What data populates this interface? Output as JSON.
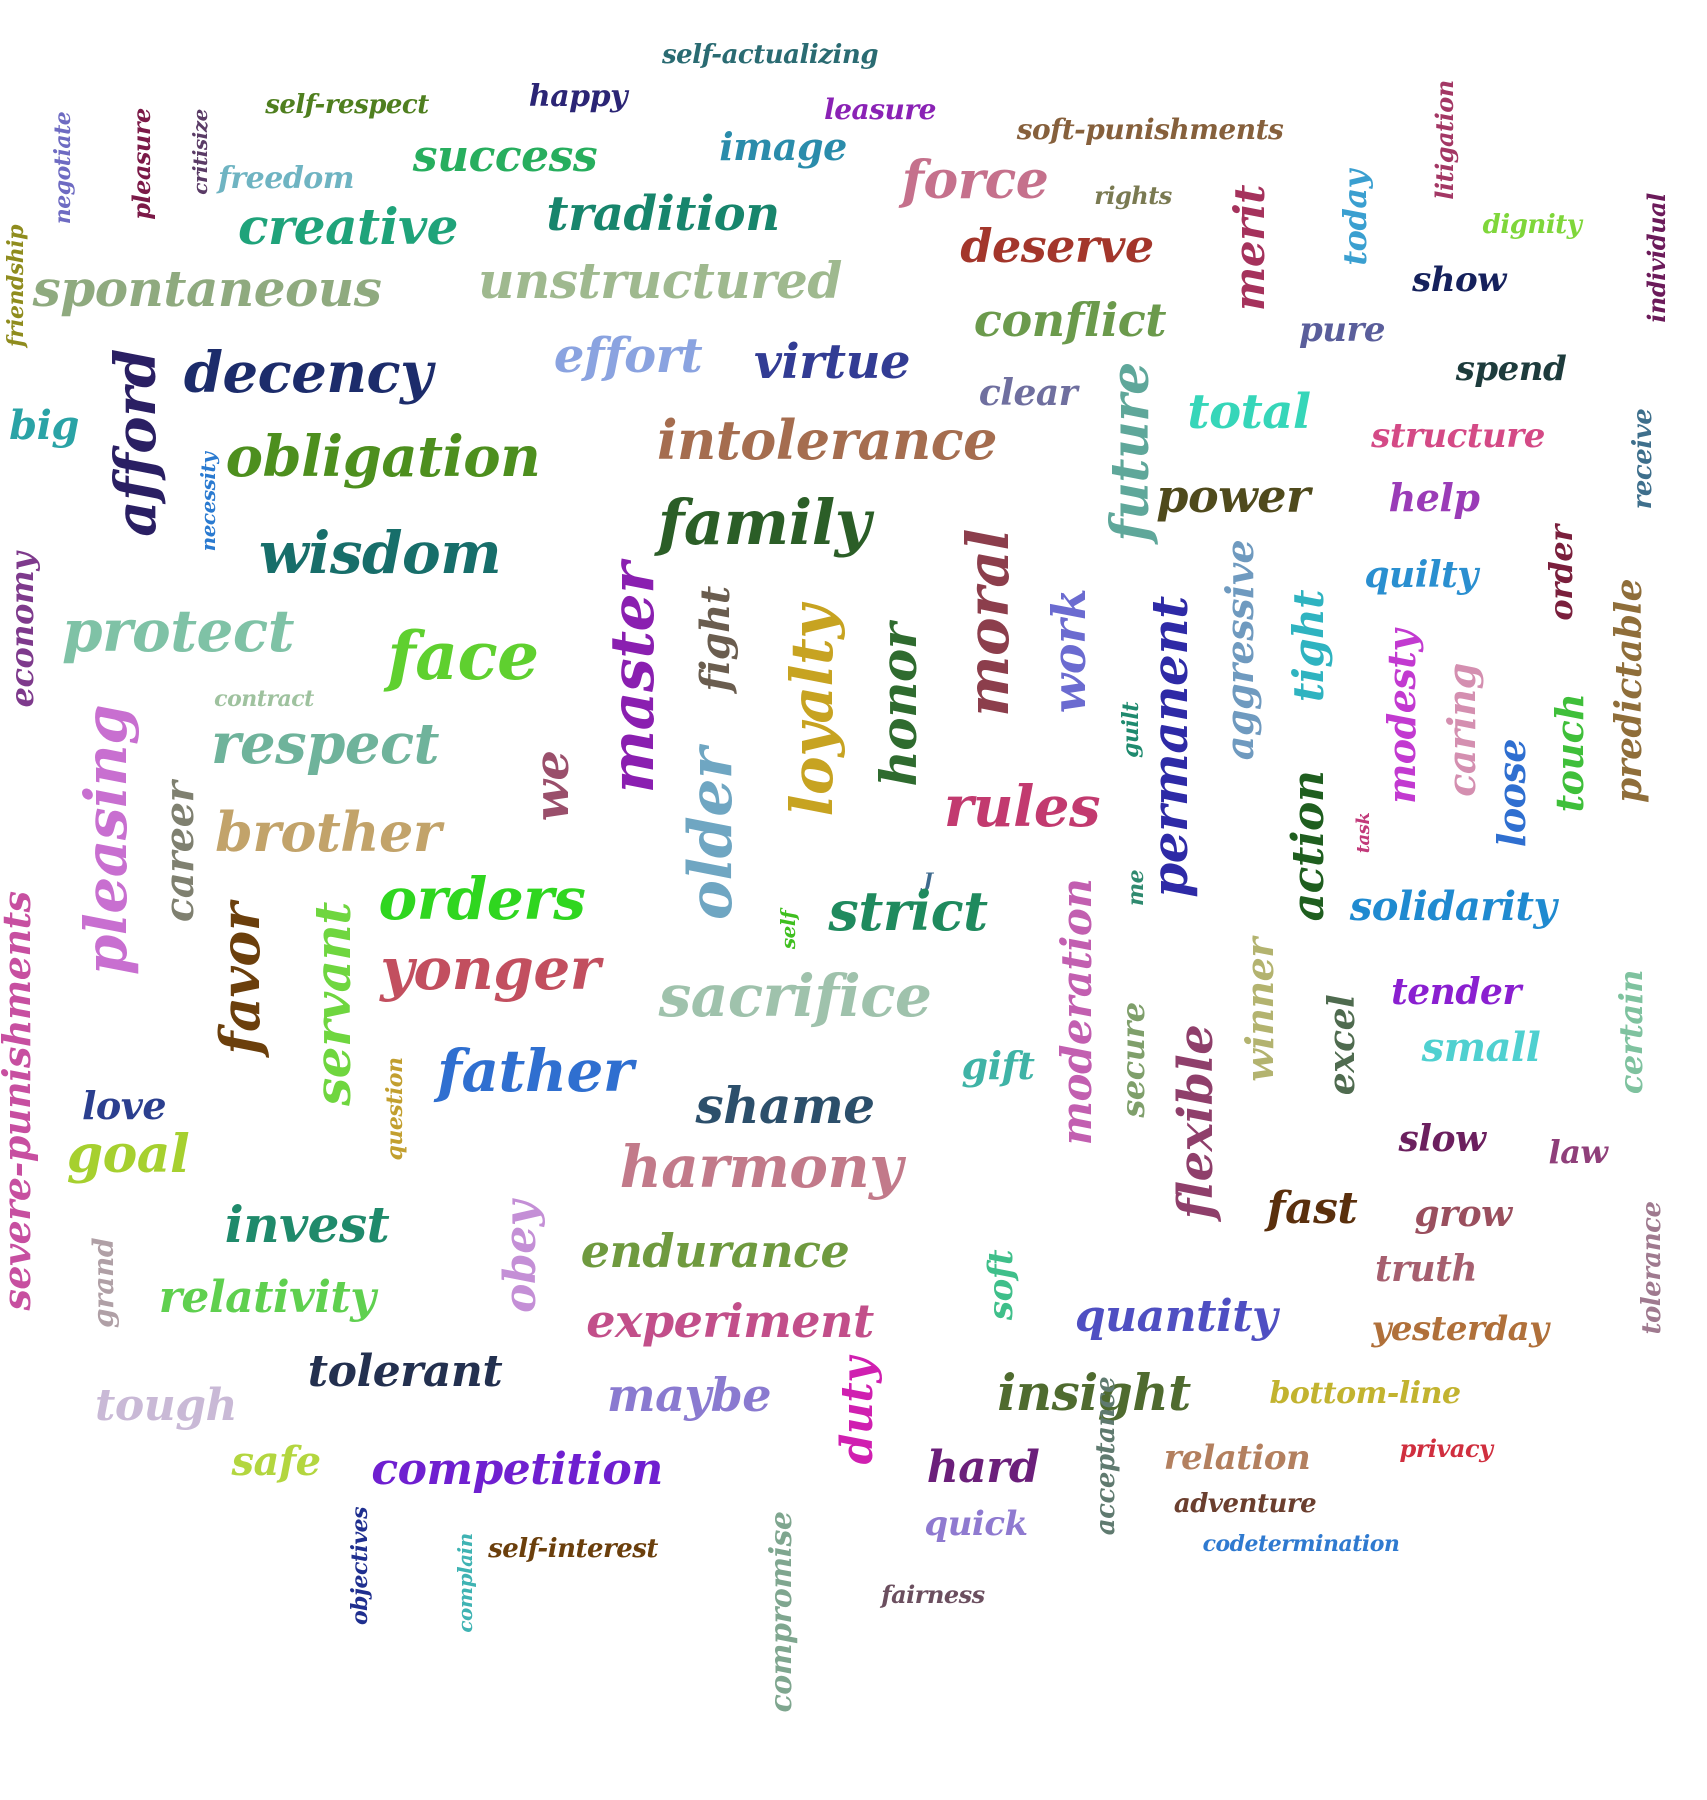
{
  "words": [
    {
      "text": "self-actualizing",
      "color": "#2a6b72"
    },
    {
      "text": "self-respect",
      "color": "#4f7f1f"
    },
    {
      "text": "happy",
      "color": "#2b2575"
    },
    {
      "text": "leasure",
      "color": "#8a22b5"
    },
    {
      "text": "soft-punishments",
      "color": "#86603c"
    },
    {
      "text": "litigation",
      "color": "#a33764"
    },
    {
      "text": "negotiate",
      "color": "#6e6bc2"
    },
    {
      "text": "pleasure",
      "color": "#7b1947"
    },
    {
      "text": "critisize",
      "color": "#5a3b66"
    },
    {
      "text": "success",
      "color": "#27ae5e"
    },
    {
      "text": "image",
      "color": "#2a8cab"
    },
    {
      "text": "freedom",
      "color": "#6fb4c2"
    },
    {
      "text": "force",
      "color": "#c5718c"
    },
    {
      "text": "rights",
      "color": "#7a7a52"
    },
    {
      "text": "friendship",
      "color": "#8f8c1e"
    },
    {
      "text": "creative",
      "color": "#1fa37a"
    },
    {
      "text": "tradition",
      "color": "#17856c"
    },
    {
      "text": "deserve",
      "color": "#a3362b"
    },
    {
      "text": "merit",
      "color": "#a5325c"
    },
    {
      "text": "today",
      "color": "#3a9fd0"
    },
    {
      "text": "dignity",
      "color": "#7fd63a"
    },
    {
      "text": "individual",
      "color": "#6b1a5a"
    },
    {
      "text": "spontaneous",
      "color": "#8faa7f"
    },
    {
      "text": "unstructured",
      "color": "#9fb98f"
    },
    {
      "text": "conflict",
      "color": "#6b9a4c"
    },
    {
      "text": "show",
      "color": "#15215c"
    },
    {
      "text": "pure",
      "color": "#5a5e9b"
    },
    {
      "text": "effort",
      "color": "#8aa3e0"
    },
    {
      "text": "virtue",
      "color": "#323c94"
    },
    {
      "text": "decency",
      "color": "#1c2c6b"
    },
    {
      "text": "afford",
      "color": "#2a1f63"
    },
    {
      "text": "spend",
      "color": "#1d3b3c"
    },
    {
      "text": "big",
      "color": "#2aa3a6"
    },
    {
      "text": "clear",
      "color": "#6f6f9f"
    },
    {
      "text": "total",
      "color": "#36d6b9"
    },
    {
      "text": "future",
      "color": "#5fa79a"
    },
    {
      "text": "structure",
      "color": "#d44a86"
    },
    {
      "text": "receive",
      "color": "#3e6f8c"
    },
    {
      "text": "obligation",
      "color": "#4d8f1e"
    },
    {
      "text": "necessity",
      "color": "#2a7ad0"
    },
    {
      "text": "intolerance",
      "color": "#a56d4f"
    },
    {
      "text": "power",
      "color": "#4f4a1c"
    },
    {
      "text": "help",
      "color": "#9a3cb7"
    },
    {
      "text": "family",
      "color": "#2b5e27"
    },
    {
      "text": "wisdom",
      "color": "#176e6a"
    },
    {
      "text": "economy",
      "color": "#7e3a8c"
    },
    {
      "text": "order",
      "color": "#7a1f3c"
    },
    {
      "text": "quilty",
      "color": "#2a8fd0"
    },
    {
      "text": "moral",
      "color": "#8c3e4c"
    },
    {
      "text": "aggressive",
      "color": "#6f9abf"
    },
    {
      "text": "protect",
      "color": "#7fc2a6"
    },
    {
      "text": "fight",
      "color": "#6a5d4f"
    },
    {
      "text": "master",
      "color": "#8a1fb0"
    },
    {
      "text": "work",
      "color": "#6b6bd0"
    },
    {
      "text": "tight",
      "color": "#2fb3c0"
    },
    {
      "text": "face",
      "color": "#5fd02f"
    },
    {
      "text": "honor",
      "color": "#2f6b2f"
    },
    {
      "text": "loyalty",
      "color": "#c7a321"
    },
    {
      "text": "permanent",
      "color": "#2e2aa6"
    },
    {
      "text": "predictable",
      "color": "#8f6e3a"
    },
    {
      "text": "contract",
      "color": "#9fc29f"
    },
    {
      "text": "modesty",
      "color": "#c23ad0"
    },
    {
      "text": "caring",
      "color": "#d48fb0"
    },
    {
      "text": "touch",
      "color": "#3fbf3a"
    },
    {
      "text": "guilt",
      "color": "#1f8a6e"
    },
    {
      "text": "respect",
      "color": "#6fb39b"
    },
    {
      "text": "pleasing",
      "color": "#c86fd0"
    },
    {
      "text": "we",
      "color": "#9a4f6b"
    },
    {
      "text": "loose",
      "color": "#2f6fd0"
    },
    {
      "text": "career",
      "color": "#7f8070"
    },
    {
      "text": "older",
      "color": "#6fa6c2"
    },
    {
      "text": "rules",
      "color": "#c23a6f"
    },
    {
      "text": "action",
      "color": "#1f5e1f"
    },
    {
      "text": "brother",
      "color": "#c2a36a"
    },
    {
      "text": "task",
      "color": "#c23a7a"
    },
    {
      "text": "severe-punishments",
      "color": "#c74fa0"
    },
    {
      "text": "orders",
      "color": "#2fd61f"
    },
    {
      "text": "me",
      "color": "#2f8a6f"
    },
    {
      "text": "J",
      "color": "#3f6b8f"
    },
    {
      "text": "strict",
      "color": "#1f8a5e"
    },
    {
      "text": "solidarity",
      "color": "#1f8ad0"
    },
    {
      "text": "favor",
      "color": "#6b3f0c"
    },
    {
      "text": "servant",
      "color": "#6fd63f"
    },
    {
      "text": "self",
      "color": "#3fbf1f"
    },
    {
      "text": "moderation",
      "color": "#c25fb0"
    },
    {
      "text": "winner",
      "color": "#b3b36f"
    },
    {
      "text": "yonger",
      "color": "#c24f5f"
    },
    {
      "text": "sacrifice",
      "color": "#9fc2ac"
    },
    {
      "text": "tender",
      "color": "#8a1fd0"
    },
    {
      "text": "certain",
      "color": "#7fc29f"
    },
    {
      "text": "excel",
      "color": "#4f6b4f"
    },
    {
      "text": "small",
      "color": "#4fd0d0"
    },
    {
      "text": "secure",
      "color": "#7f9f6b"
    },
    {
      "text": "gift",
      "color": "#3fb3a6"
    },
    {
      "text": "father",
      "color": "#2f6fd0"
    },
    {
      "text": "flexible",
      "color": "#8f3f6b"
    },
    {
      "text": "question",
      "color": "#c29f2f"
    },
    {
      "text": "shame",
      "color": "#2c4f6b"
    },
    {
      "text": "love",
      "color": "#2b3f8f"
    },
    {
      "text": "slow",
      "color": "#6b1f5e"
    },
    {
      "text": "law",
      "color": "#8f3f7a"
    },
    {
      "text": "goal",
      "color": "#a6d02f"
    },
    {
      "text": "harmony",
      "color": "#c27a8a"
    },
    {
      "text": "obey",
      "color": "#c48fd6"
    },
    {
      "text": "fast",
      "color": "#5a2f0c"
    },
    {
      "text": "grow",
      "color": "#9a4f5e"
    },
    {
      "text": "invest",
      "color": "#1f8a6b"
    },
    {
      "text": "tolerance",
      "color": "#9f7a8f"
    },
    {
      "text": "endurance",
      "color": "#6f9a3f"
    },
    {
      "text": "grand",
      "color": "#b0a0a6"
    },
    {
      "text": "truth",
      "color": "#a65f6f"
    },
    {
      "text": "soft",
      "color": "#3fbf8a"
    },
    {
      "text": "relativity",
      "color": "#5fd04f"
    },
    {
      "text": "experiment",
      "color": "#c24f8a"
    },
    {
      "text": "quantity",
      "color": "#4f4fc2"
    },
    {
      "text": "yesterday",
      "color": "#b0703a"
    },
    {
      "text": "tolerant",
      "color": "#23304f"
    },
    {
      "text": "insight",
      "color": "#4f6b2f"
    },
    {
      "text": "bottom-line",
      "color": "#c2b32f"
    },
    {
      "text": "tough",
      "color": "#c9b9d6"
    },
    {
      "text": "maybe",
      "color": "#8a7ad0"
    },
    {
      "text": "duty",
      "color": "#d01fb0"
    },
    {
      "text": "acceptance",
      "color": "#5f7a6f"
    },
    {
      "text": "relation",
      "color": "#b3805f"
    },
    {
      "text": "privacy",
      "color": "#d02f3f"
    },
    {
      "text": "safe",
      "color": "#b3d63f"
    },
    {
      "text": "competition",
      "color": "#6f1fd0"
    },
    {
      "text": "hard",
      "color": "#6b1f7a"
    },
    {
      "text": "adventure",
      "color": "#6b3f2f"
    },
    {
      "text": "quick",
      "color": "#8f7ad0"
    },
    {
      "text": "codetermination",
      "color": "#2f7ad0"
    },
    {
      "text": "objectives",
      "color": "#1f2f8f"
    },
    {
      "text": "complain",
      "color": "#3fb3b3"
    },
    {
      "text": "self-interest",
      "color": "#6b3f0c"
    },
    {
      "text": "compromise",
      "color": "#7fa68f"
    },
    {
      "text": "fairness",
      "color": "#6b4f5f"
    }
  ]
}
